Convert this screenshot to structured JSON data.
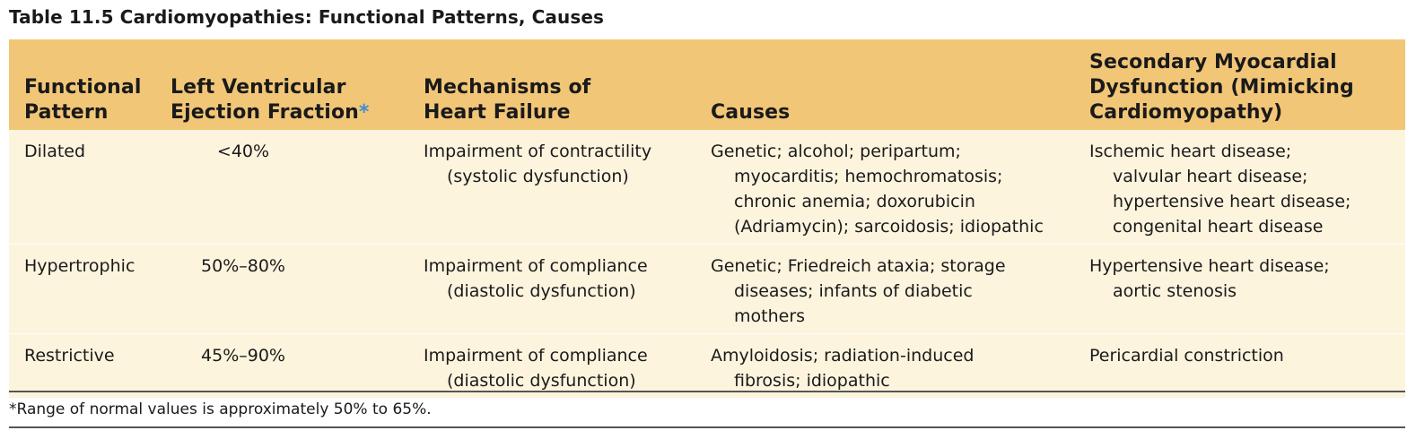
{
  "title": "Table 11.5  Cardiomyopathies: Functional Patterns, Causes",
  "headers": {
    "col1": [
      "Functional",
      "Pattern"
    ],
    "col2": [
      "Left Ventricular",
      "Ejection Fraction"
    ],
    "col2_marker": "*",
    "col3": [
      "Mechanisms of",
      "Heart Failure"
    ],
    "col4": [
      "Causes"
    ],
    "col5": [
      "Secondary Myocardial",
      "Dysfunction (Mimicking",
      "Cardiomyopathy)"
    ]
  },
  "rows": [
    {
      "pattern": "Dilated",
      "ejection_fraction": "<40%",
      "mechanism": [
        "Impairment of contractility",
        "(systolic dysfunction)"
      ],
      "causes": [
        "Genetic; alcohol; peripartum;",
        "myocarditis; hemochromatosis;",
        "chronic anemia; doxorubicin",
        "(Adriamycin); sarcoidosis; idiopathic"
      ],
      "secondary": [
        "Ischemic heart disease;",
        "valvular heart disease;",
        "hypertensive heart disease;",
        "congenital heart disease"
      ]
    },
    {
      "pattern": "Hypertrophic",
      "ejection_fraction": "50%–80%",
      "mechanism": [
        "Impairment of compliance",
        "(diastolic dysfunction)"
      ],
      "causes": [
        "Genetic; Friedreich ataxia; storage",
        "diseases; infants of diabetic",
        "mothers"
      ],
      "secondary": [
        "Hypertensive heart disease;",
        "aortic stenosis"
      ]
    },
    {
      "pattern": "Restrictive",
      "ejection_fraction": "45%–90%",
      "mechanism": [
        "Impairment of compliance",
        "(diastolic dysfunction)"
      ],
      "causes": [
        "Amyloidosis; radiation-induced",
        "fibrosis; idiopathic"
      ],
      "secondary": [
        "Pericardial constriction"
      ]
    }
  ],
  "footnote": "*Range of normal values is approximately 50% to 65%.",
  "colors": {
    "header_bg": "#f2c677",
    "body_bg": "#fdf4de",
    "asterisk": "#3a8fd0"
  }
}
